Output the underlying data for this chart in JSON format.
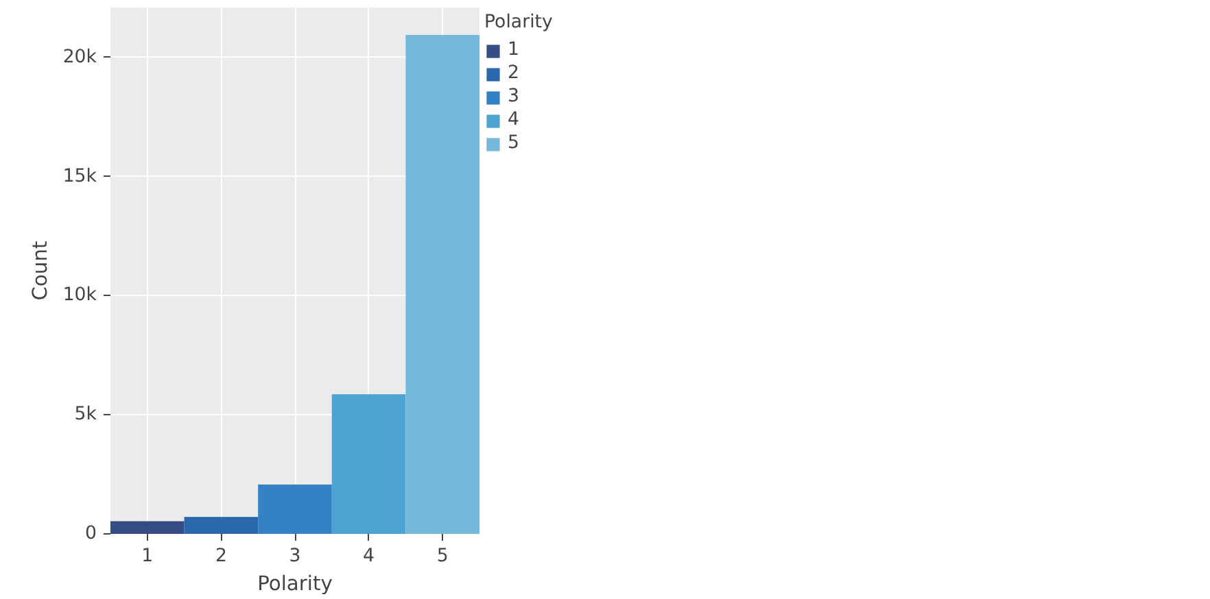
{
  "chart_data": {
    "type": "bar",
    "xlabel": "Polarity",
    "ylabel": "Count",
    "legend_title": "Polarity",
    "x": [
      1,
      2,
      3,
      4,
      5
    ],
    "series": [
      {
        "name": "1",
        "color": "#344d84",
        "values": [
          530,
          null,
          null,
          null,
          null
        ]
      },
      {
        "name": "2",
        "color": "#2a67ad",
        "values": [
          null,
          710,
          null,
          null,
          null
        ]
      },
      {
        "name": "3",
        "color": "#3482c4",
        "values": [
          null,
          null,
          2070,
          null,
          null
        ]
      },
      {
        "name": "4",
        "color": "#4fa3d3",
        "values": [
          null,
          null,
          null,
          5860,
          null
        ]
      },
      {
        "name": "5",
        "color": "#75b8db",
        "values": [
          null,
          null,
          null,
          null,
          20950
        ]
      }
    ],
    "xlim": [
      0.5,
      5.5
    ],
    "xticks": [
      1,
      2,
      3,
      4,
      5
    ],
    "ylim": [
      0,
      22100
    ],
    "yticks": [
      0,
      {
        "value": 5000,
        "label": "5k"
      },
      {
        "value": 10000,
        "label": "10k"
      },
      {
        "value": 15000,
        "label": "15k"
      },
      {
        "value": 20000,
        "label": "20k"
      }
    ],
    "grid": true,
    "legend": "right"
  }
}
